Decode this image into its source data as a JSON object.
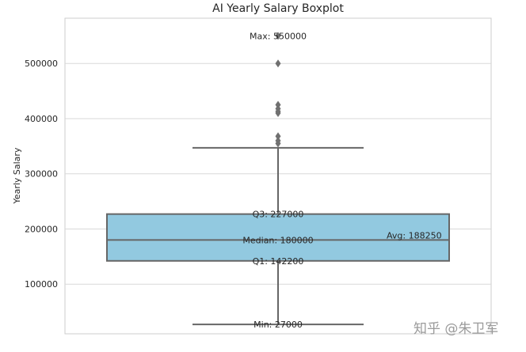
{
  "chart_data": {
    "type": "box",
    "title": "AI Yearly Salary Boxplot",
    "ylabel": "Yearly Salary",
    "ylim": [
      10000,
      582000
    ],
    "yticks": [
      100000,
      200000,
      300000,
      400000,
      500000
    ],
    "ytick_labels": [
      "100000",
      "200000",
      "300000",
      "400000",
      "500000"
    ],
    "grid": true,
    "box": {
      "whisker_low": 27000,
      "q1": 142200,
      "median": 180000,
      "q3": 227000,
      "whisker_high": 347000,
      "color": "#92c9e0",
      "edge_color": "#666666"
    },
    "outliers": [
      355000,
      360000,
      368000,
      410000,
      413000,
      418000,
      425000,
      500000,
      550000
    ],
    "annotations": [
      {
        "value": 550000,
        "text": "Max: 550000",
        "pos": "center"
      },
      {
        "value": 227000,
        "text": "Q3: 227000",
        "pos": "center"
      },
      {
        "value": 180000,
        "text": "Median: 180000",
        "pos": "center"
      },
      {
        "value": 142200,
        "text": "Q1: 142200",
        "pos": "center"
      },
      {
        "value": 27000,
        "text": "Min: 27000",
        "pos": "center"
      },
      {
        "value": 188250,
        "text": "Avg: 188250",
        "pos": "right"
      }
    ]
  },
  "watermark": "知乎 @朱卫军"
}
